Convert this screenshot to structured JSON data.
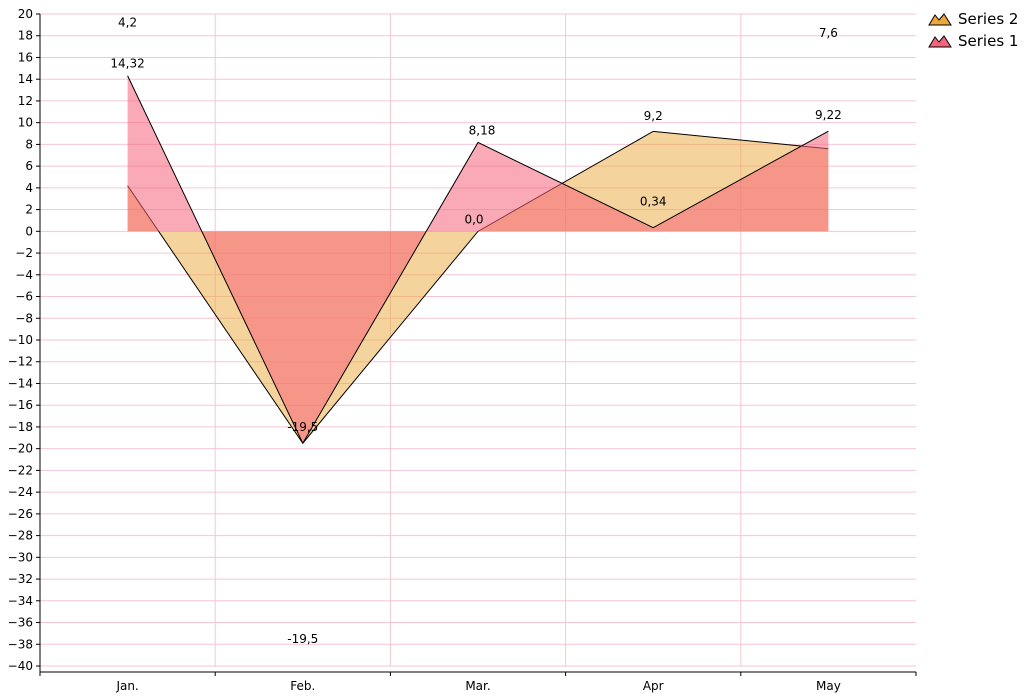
{
  "chart_data": {
    "type": "area",
    "categories": [
      "Jan.",
      "Feb.",
      "Mar.",
      "Apr",
      "May"
    ],
    "ylim": [
      -40,
      20
    ],
    "ytick_step": 2,
    "grid": true,
    "legend_position": "top-right",
    "series": [
      {
        "name": "Series 1",
        "values": [
          14.32,
          -19.5,
          8.18,
          0.34,
          9.22
        ],
        "labels": [
          "14,32",
          "-19,5",
          "8,18",
          "0,34",
          "9,22"
        ],
        "color": "#F4647A"
      },
      {
        "name": "Series 2",
        "values": [
          4.2,
          -19.5,
          0.0,
          9.2,
          7.6
        ],
        "labels": [
          "4,2",
          "-19,5",
          "0,0",
          "9,2",
          "7,6"
        ],
        "color": "#EBA73A"
      }
    ]
  }
}
